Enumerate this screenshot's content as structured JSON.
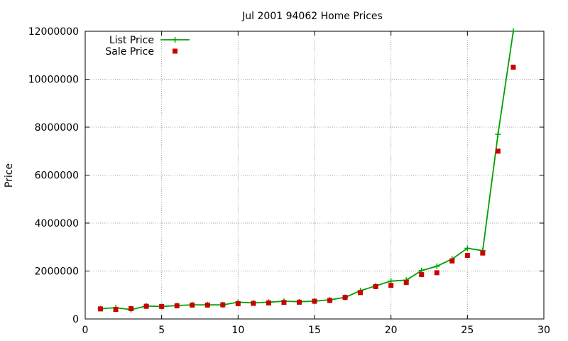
{
  "chart_data": {
    "type": "line",
    "title": "Jul 2001 94062 Home Prices",
    "xlabel": "",
    "ylabel": "Price",
    "xlim": [
      0,
      30
    ],
    "ylim": [
      0,
      12000000
    ],
    "x_ticks": [
      0,
      5,
      10,
      15,
      20,
      25,
      30
    ],
    "y_ticks": [
      0,
      2000000,
      4000000,
      6000000,
      8000000,
      10000000,
      12000000
    ],
    "grid": true,
    "legend_position": "top-left",
    "series": [
      {
        "name": "List Price",
        "marker": "plus",
        "style": "line+markers",
        "color": "#00a000",
        "x": [
          1,
          2,
          3,
          4,
          5,
          6,
          7,
          8,
          9,
          10,
          11,
          12,
          13,
          14,
          15,
          16,
          17,
          18,
          19,
          20,
          21,
          22,
          23,
          24,
          25,
          26,
          27,
          28
        ],
        "y": [
          430000,
          470000,
          390000,
          540000,
          520000,
          560000,
          590000,
          590000,
          590000,
          700000,
          670000,
          700000,
          740000,
          720000,
          740000,
          800000,
          900000,
          1180000,
          1380000,
          1580000,
          1620000,
          2020000,
          2200000,
          2500000,
          2950000,
          2850000,
          7700000,
          12000000
        ]
      },
      {
        "name": "Sale Price",
        "marker": "square",
        "style": "markers",
        "color": "#cc0000",
        "x": [
          1,
          2,
          3,
          4,
          5,
          6,
          7,
          8,
          9,
          10,
          11,
          12,
          13,
          14,
          15,
          16,
          17,
          18,
          19,
          20,
          21,
          22,
          23,
          24,
          25,
          26,
          27,
          28
        ],
        "y": [
          420000,
          400000,
          430000,
          530000,
          520000,
          550000,
          580000,
          580000,
          590000,
          640000,
          650000,
          670000,
          690000,
          700000,
          740000,
          770000,
          900000,
          1100000,
          1350000,
          1400000,
          1520000,
          1850000,
          1930000,
          2420000,
          2650000,
          2750000,
          7000000,
          10500000
        ]
      }
    ]
  }
}
